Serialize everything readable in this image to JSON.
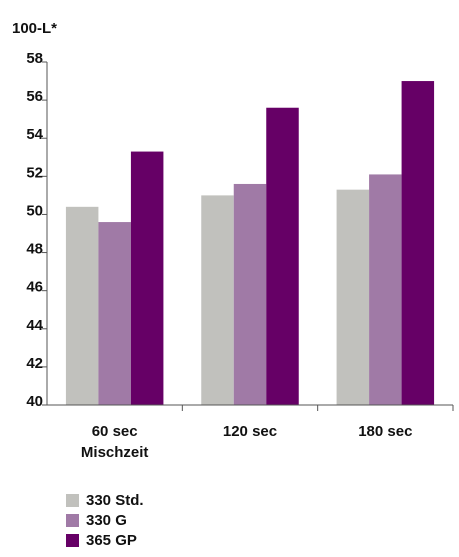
{
  "chart_data": {
    "type": "bar",
    "ylabel": "100-L*",
    "ylim": [
      40,
      58
    ],
    "yticks": [
      "40",
      "42",
      "44",
      "46",
      "48",
      "50",
      "52",
      "54",
      "56",
      "58"
    ],
    "categories": [
      "60 sec",
      "120 sec",
      "180 sec"
    ],
    "category_sublabels": [
      "Mischzeit",
      "",
      ""
    ],
    "grid": false,
    "legend_position": "bottom-left",
    "series": [
      {
        "name": "330 Std.",
        "color": "#c1c1bd",
        "values": [
          50.4,
          51.0,
          51.3
        ]
      },
      {
        "name": "330 G",
        "color": "#a07aa6",
        "values": [
          49.6,
          51.6,
          52.1
        ]
      },
      {
        "name": "365 GP",
        "color": "#660066",
        "values": [
          53.3,
          55.6,
          57.0
        ]
      }
    ]
  }
}
